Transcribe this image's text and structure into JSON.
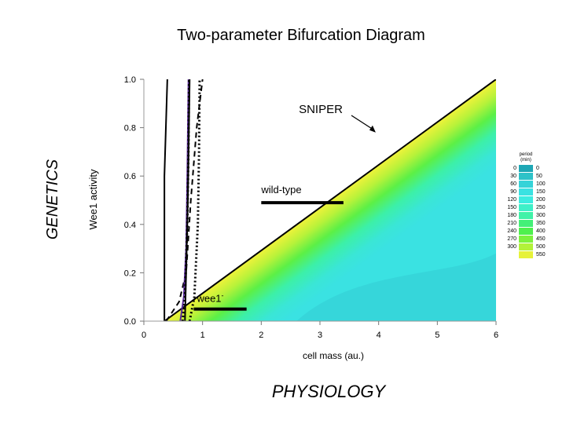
{
  "chart_data": {
    "type": "area",
    "title": "Two-parameter Bifurcation Diagram",
    "xlabel": "cell mass (au.)",
    "ylabel": "Wee1 activity",
    "left_label": "GENETICS",
    "bottom_label": "PHYSIOLOGY",
    "xlim": [
      0,
      6
    ],
    "ylim": [
      0,
      1.0
    ],
    "x_ticks": [
      "0",
      "1",
      "2",
      "3",
      "4",
      "5",
      "6"
    ],
    "y_ticks": [
      "0.0",
      "0.2",
      "0.4",
      "0.6",
      "0.8",
      "1.0"
    ],
    "grid": false,
    "sniper_line": {
      "x": [
        0.35,
        6.0
      ],
      "y": [
        0.0,
        1.0
      ]
    },
    "curves": [
      {
        "style": "solid-black",
        "x": [
          0.35,
          0.35,
          0.4
        ],
        "y": [
          0.0,
          0.6,
          1.0
        ]
      },
      {
        "style": "dashed-black",
        "x": [
          0.38,
          0.6,
          0.72,
          0.8,
          0.9,
          1.0
        ],
        "y": [
          0.0,
          0.08,
          0.2,
          0.5,
          0.8,
          1.0
        ]
      },
      {
        "style": "solid-purple",
        "x": [
          0.62,
          0.68,
          0.72,
          0.74,
          0.76
        ],
        "y": [
          0.0,
          0.1,
          0.3,
          0.6,
          1.0
        ]
      },
      {
        "style": "dotted-black",
        "x": [
          0.66,
          0.7,
          0.74,
          0.76,
          0.77
        ],
        "y": [
          0.0,
          0.1,
          0.4,
          0.7,
          1.0
        ]
      },
      {
        "style": "dotted-black",
        "x": [
          0.78,
          0.86,
          0.92,
          0.94,
          0.95
        ],
        "y": [
          0.0,
          0.1,
          0.4,
          0.7,
          1.0
        ]
      },
      {
        "style": "solid-black",
        "x": [
          0.7,
          0.75,
          0.78
        ],
        "y": [
          0.0,
          0.5,
          1.0
        ]
      }
    ],
    "markers": [
      {
        "label": "wild-type",
        "x": [
          2.0,
          3.4
        ],
        "y": 0.49
      },
      {
        "label": "wee1",
        "superscript": "-",
        "x": [
          0.85,
          1.75
        ],
        "y": 0.05
      }
    ],
    "annotations": [
      {
        "text": "SNIPER",
        "points_to_x": 3.95,
        "points_to_y": 0.78
      }
    ],
    "legend": {
      "title": "period\n(min)",
      "placement": "right",
      "left_values": [
        "0",
        "30",
        "60",
        "90",
        "120",
        "150",
        "180",
        "210",
        "240",
        "270",
        "300"
      ],
      "right_values": [
        "0",
        "50",
        "100",
        "150",
        "200",
        "250",
        "300",
        "350",
        "400",
        "450",
        "500",
        "550"
      ],
      "colors": [
        "#1ea7b5",
        "#2ec2c8",
        "#35d3d8",
        "#3ae2e2",
        "#3cece0",
        "#3ef0c8",
        "#40f2a8",
        "#44f078",
        "#4ef04e",
        "#7cf23e",
        "#b2f23a",
        "#e6f23a"
      ]
    }
  }
}
